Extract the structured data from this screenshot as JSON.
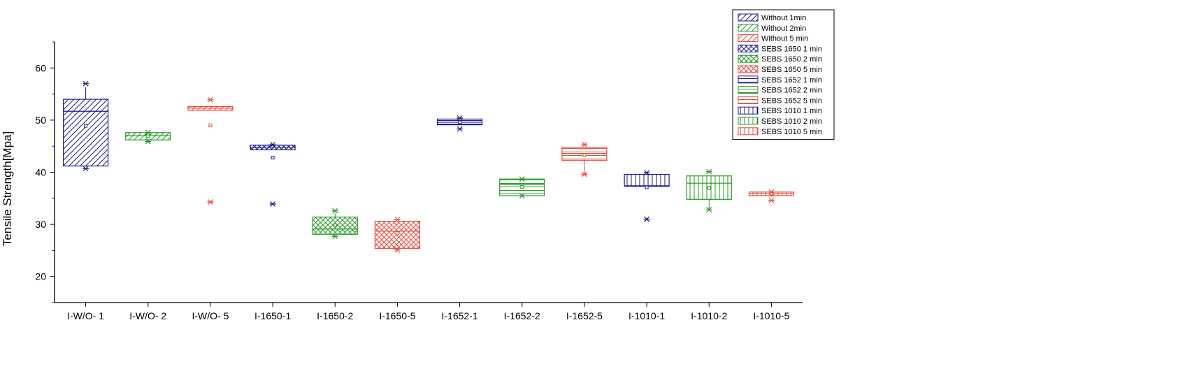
{
  "chart_data": {
    "type": "box",
    "ylabel": "Tensile Strength[Mpa]",
    "ylim": [
      15,
      65
    ],
    "yticks": [
      20,
      30,
      40,
      50,
      60
    ],
    "categories": [
      "I-W/O- 1",
      "I-W/O- 2",
      "I-W/O- 5",
      "I-1650-1",
      "I-1650-2",
      "I-1650-5",
      "I-1652-1",
      "I-1652-2",
      "I-1652-5",
      "I-1010-1",
      "I-1010-2",
      "I-1010-5"
    ],
    "legend_position": "top-right",
    "series": [
      {
        "name": "Without 1min",
        "color": "#1a1a8c",
        "pattern": "diag",
        "category": "I-W/O- 1",
        "q1": 41.2,
        "median": 51.7,
        "q3": 54.0,
        "whisker_low": 41.2,
        "whisker_high": 56.3,
        "mean": 48.9,
        "min": 40.7,
        "max": 57.0,
        "outliers": []
      },
      {
        "name": "Without 2min",
        "color": "#229922",
        "pattern": "diag",
        "category": "I-W/O- 2",
        "q1": 46.2,
        "median": 47.0,
        "q3": 47.6,
        "whisker_low": 46.2,
        "whisker_high": 47.6,
        "mean": 46.9,
        "min": 45.9,
        "max": 47.6,
        "outliers": []
      },
      {
        "name": "Without 5 min",
        "color": "#e84c3d",
        "pattern": "diag",
        "category": "I-W/O- 5",
        "q1": 51.9,
        "median": 52.3,
        "q3": 52.6,
        "whisker_low": 51.9,
        "whisker_high": 52.6,
        "mean": 49.0,
        "min": 34.3,
        "max": 53.9,
        "outliers": []
      },
      {
        "name": "SEBS 1650 1 min",
        "color": "#1a1a8c",
        "pattern": "cross",
        "category": "I-1650-1",
        "q1": 44.3,
        "median": 44.8,
        "q3": 45.2,
        "whisker_low": 44.3,
        "whisker_high": 45.2,
        "mean": 42.8,
        "min": 33.9,
        "max": 45.3,
        "outliers": []
      },
      {
        "name": "SEBS 1650 2 min",
        "color": "#229922",
        "pattern": "cross",
        "category": "I-1650-2",
        "q1": 28.1,
        "median": 29.1,
        "q3": 31.4,
        "whisker_low": 28.1,
        "whisker_high": 32.2,
        "mean": 29.8,
        "min": 27.7,
        "max": 32.6,
        "outliers": []
      },
      {
        "name": "SEBS 1650 5 min",
        "color": "#e84c3d",
        "pattern": "cross",
        "category": "I-1650-5",
        "q1": 25.4,
        "median": 28.7,
        "q3": 30.6,
        "whisker_low": 25.4,
        "whisker_high": 30.6,
        "mean": 28.3,
        "min": 25.1,
        "max": 30.9,
        "outliers": []
      },
      {
        "name": "SEBS 1652 1 min",
        "color": "#1a1a8c",
        "pattern": "hlines",
        "category": "I-1652-1",
        "q1": 49.1,
        "median": 49.6,
        "q3": 50.2,
        "whisker_low": 49.1,
        "whisker_high": 50.2,
        "mean": 49.6,
        "min": 48.3,
        "max": 50.4,
        "outliers": []
      },
      {
        "name": "SEBS 1652 2 min",
        "color": "#229922",
        "pattern": "hlines",
        "category": "I-1652-2",
        "q1": 35.5,
        "median": 37.6,
        "q3": 38.7,
        "whisker_low": 35.5,
        "whisker_high": 38.7,
        "mean": 37.2,
        "min": 35.5,
        "max": 38.7,
        "outliers": []
      },
      {
        "name": "SEBS 1652 5 min",
        "color": "#e84c3d",
        "pattern": "hlines",
        "category": "I-1652-5",
        "q1": 42.3,
        "median": 43.6,
        "q3": 44.8,
        "whisker_low": 39.6,
        "whisker_high": 44.8,
        "mean": 43.3,
        "min": 39.6,
        "max": 45.3,
        "outliers": []
      },
      {
        "name": "SEBS 1010 1 min",
        "color": "#1a1a8c",
        "pattern": "vlines",
        "category": "I-1010-1",
        "q1": 37.3,
        "median": 37.4,
        "q3": 39.6,
        "whisker_low": 37.3,
        "whisker_high": 39.6,
        "mean": 37.1,
        "min": 31.0,
        "max": 39.9,
        "outliers": []
      },
      {
        "name": "SEBS 1010 2 min",
        "color": "#229922",
        "pattern": "vlines",
        "category": "I-1010-2",
        "q1": 34.8,
        "median": 37.9,
        "q3": 39.3,
        "whisker_low": 32.9,
        "whisker_high": 39.3,
        "mean": 37.0,
        "min": 32.8,
        "max": 40.1,
        "outliers": []
      },
      {
        "name": "SEBS 1010 5 min",
        "color": "#e84c3d",
        "pattern": "vlines",
        "category": "I-1010-5",
        "q1": 35.5,
        "median": 35.9,
        "q3": 36.2,
        "whisker_low": 35.3,
        "whisker_high": 36.2,
        "mean": 35.9,
        "min": 34.6,
        "max": 36.2,
        "outliers": []
      }
    ]
  }
}
